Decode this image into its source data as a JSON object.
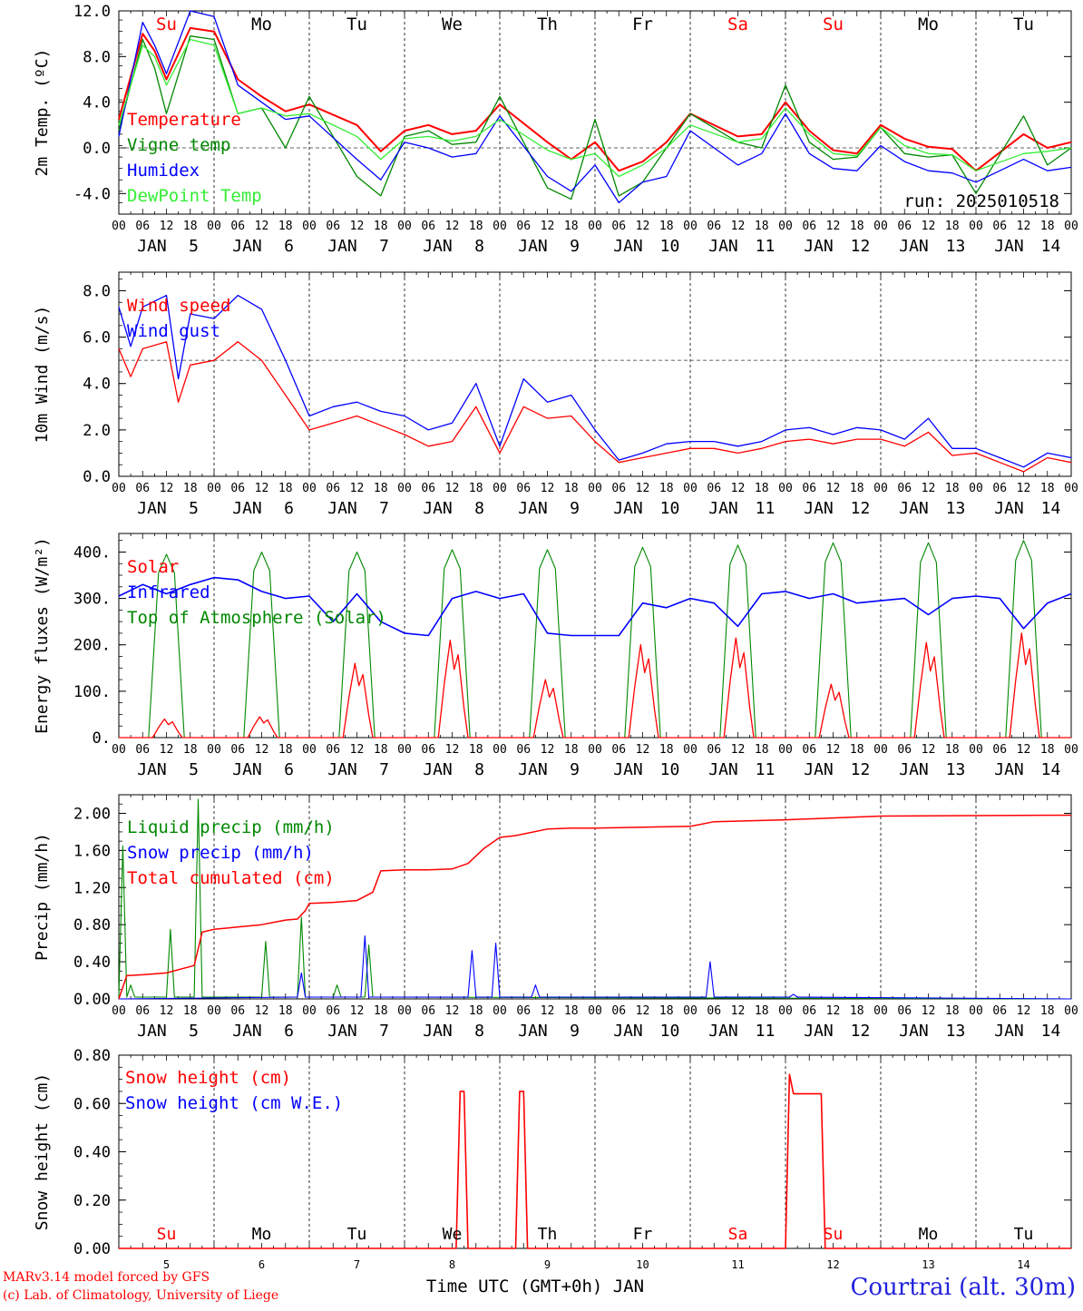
{
  "footer": {
    "model_line": "MARv3.14 model forced by GFS",
    "lab_line": "(c) Lab. of Climatology, University of Liege",
    "station": "Courtrai (alt. 30m)",
    "xaxis_title": "Time UTC (GMT+0h) JAN"
  },
  "colors": {
    "red": "#ff0000",
    "green": "#008800",
    "blue": "#0000ff",
    "lightgreen": "#33ee33"
  },
  "x_axis": {
    "day_start": 5,
    "n_days": 10,
    "hour_ticks": [
      "00",
      "06",
      "12",
      "18"
    ],
    "month": "JAN",
    "dates": [
      "5",
      "6",
      "7",
      "8",
      "9",
      "10",
      "11",
      "12",
      "13",
      "14"
    ],
    "weekdays": [
      "Su",
      "Mo",
      "Tu",
      "We",
      "Th",
      "Fr",
      "Sa",
      "Su",
      "Mo",
      "Tu"
    ],
    "weekday_colors": [
      "red",
      "black",
      "black",
      "black",
      "black",
      "black",
      "red",
      "red",
      "black",
      "black"
    ]
  },
  "chart_data": [
    {
      "type": "line",
      "ylabel": "2m Temp. (ºC)",
      "ylim": [
        -5.8,
        12.0
      ],
      "yticks": [
        "12.0",
        "8.0",
        "4.0",
        "0.0",
        "-4.0"
      ],
      "ytick_values": [
        12,
        8,
        4,
        0,
        -4
      ],
      "reference_line": 0,
      "annotation": "run: 2025010518",
      "x_hours": [
        0,
        6,
        9,
        12,
        18,
        24,
        30,
        36,
        42,
        48,
        60,
        66,
        72,
        78,
        84,
        90,
        96,
        108,
        114,
        120,
        126,
        132,
        138,
        144,
        156,
        162,
        168,
        174,
        180,
        186,
        192,
        198,
        204,
        210,
        216,
        228,
        234,
        240
      ],
      "series": [
        {
          "name": "Temperature",
          "color": "red",
          "values": [
            2.5,
            10.0,
            8.5,
            6.0,
            10.5,
            10.2,
            6.0,
            4.5,
            3.2,
            3.8,
            2.0,
            -0.3,
            1.5,
            2.0,
            1.2,
            1.5,
            3.8,
            0.5,
            -1.0,
            0.5,
            -2.0,
            -1.2,
            0.5,
            3.0,
            1.0,
            1.2,
            4.0,
            1.5,
            -0.2,
            -0.5,
            2.0,
            0.8,
            0.1,
            -0.1,
            -2.0,
            1.2,
            0.0,
            0.5
          ]
        },
        {
          "name": "Vigne temp",
          "color": "green",
          "values": [
            1.5,
            9.5,
            7.0,
            3.0,
            9.8,
            9.5,
            3.0,
            3.5,
            0.0,
            4.5,
            -2.5,
            -4.2,
            1.0,
            1.5,
            0.3,
            0.5,
            4.5,
            -3.5,
            -4.5,
            2.5,
            -4.2,
            -3.0,
            0.0,
            3.0,
            0.5,
            0.0,
            5.5,
            0.5,
            -1.0,
            -0.8,
            1.8,
            -0.5,
            -0.8,
            -0.6,
            -4.0,
            2.8,
            -1.5,
            0.0
          ]
        },
        {
          "name": "Humidex",
          "color": "blue",
          "values": [
            1.0,
            11.0,
            9.0,
            6.5,
            12.0,
            11.5,
            5.5,
            4.0,
            2.5,
            2.8,
            -1.0,
            -2.8,
            0.5,
            0.0,
            -0.8,
            -0.5,
            2.8,
            -2.5,
            -3.8,
            -1.5,
            -4.8,
            -3.0,
            -2.5,
            1.5,
            -1.5,
            -0.5,
            3.0,
            -0.5,
            -1.8,
            -2.0,
            0.2,
            -1.2,
            -2.0,
            -2.2,
            -3.0,
            -1.0,
            -2.0,
            -1.7
          ]
        },
        {
          "name": "DewPoint Temp",
          "color": "lightgreen",
          "values": [
            2.0,
            9.0,
            8.0,
            5.5,
            9.5,
            9.0,
            3.0,
            3.5,
            2.8,
            3.0,
            1.0,
            -1.0,
            0.8,
            1.0,
            0.6,
            1.0,
            2.5,
            -0.2,
            -1.0,
            -0.5,
            -2.5,
            -1.5,
            0.0,
            2.0,
            0.5,
            0.8,
            3.5,
            1.2,
            -0.5,
            -0.7,
            1.8,
            0.2,
            -0.5,
            -0.6,
            -2.0,
            -0.5,
            -0.3,
            0.0
          ]
        }
      ]
    },
    {
      "type": "line",
      "ylabel": "10m Wind (m/s)",
      "ylim": [
        0,
        8.8
      ],
      "yticks": [
        "8.0",
        "6.0",
        "4.0",
        "2.0",
        "0.0"
      ],
      "ytick_values": [
        8,
        6,
        4,
        2,
        0
      ],
      "reference_line": 5,
      "x_hours": [
        0,
        3,
        6,
        12,
        15,
        18,
        24,
        30,
        36,
        42,
        48,
        54,
        60,
        66,
        72,
        78,
        84,
        90,
        96,
        102,
        108,
        114,
        120,
        126,
        132,
        138,
        144,
        150,
        156,
        162,
        168,
        174,
        180,
        186,
        192,
        198,
        204,
        210,
        216,
        222,
        228,
        234,
        240
      ],
      "series": [
        {
          "name": "Wind speed",
          "color": "red",
          "values": [
            5.5,
            4.3,
            5.5,
            5.8,
            3.2,
            4.8,
            5.0,
            5.8,
            5.0,
            3.5,
            2.0,
            2.3,
            2.6,
            2.2,
            1.8,
            1.3,
            1.5,
            3.0,
            1.0,
            3.0,
            2.5,
            2.6,
            1.5,
            0.6,
            0.8,
            1.0,
            1.2,
            1.2,
            1.0,
            1.2,
            1.5,
            1.6,
            1.4,
            1.6,
            1.6,
            1.3,
            1.9,
            0.9,
            1.0,
            0.6,
            0.2,
            0.8,
            0.6
          ]
        },
        {
          "name": "Wind gust",
          "color": "blue",
          "values": [
            7.3,
            5.6,
            7.3,
            7.8,
            4.2,
            7.0,
            6.8,
            7.8,
            7.2,
            5.0,
            2.6,
            3.0,
            3.2,
            2.8,
            2.6,
            2.0,
            2.3,
            4.0,
            1.3,
            4.2,
            3.2,
            3.5,
            2.0,
            0.7,
            1.0,
            1.4,
            1.5,
            1.5,
            1.3,
            1.5,
            2.0,
            2.1,
            1.8,
            2.1,
            2.0,
            1.6,
            2.5,
            1.2,
            1.2,
            0.8,
            0.4,
            1.0,
            0.8
          ]
        }
      ]
    },
    {
      "type": "line",
      "ylabel": "Energy fluxes (W/m²)",
      "ylim": [
        0,
        440
      ],
      "yticks": [
        "400.",
        "300.",
        "200.",
        "100.",
        "0."
      ],
      "ytick_values": [
        400,
        300,
        200,
        100,
        0
      ],
      "series": [
        {
          "name": "Solar",
          "color": "red",
          "peaks": [
            40,
            45,
            160,
            210,
            125,
            200,
            215,
            115,
            205,
            225
          ]
        },
        {
          "name": "Infrared",
          "color": "blue",
          "x_hours": [
            0,
            6,
            12,
            18,
            24,
            30,
            36,
            42,
            48,
            54,
            60,
            66,
            72,
            78,
            84,
            90,
            96,
            102,
            108,
            114,
            120,
            126,
            132,
            138,
            144,
            150,
            156,
            162,
            168,
            174,
            180,
            186,
            192,
            198,
            204,
            210,
            216,
            222,
            228,
            234,
            240
          ],
          "values": [
            305,
            330,
            310,
            330,
            345,
            340,
            315,
            300,
            305,
            250,
            310,
            250,
            225,
            220,
            300,
            315,
            300,
            310,
            225,
            220,
            220,
            220,
            290,
            280,
            300,
            290,
            240,
            310,
            315,
            300,
            310,
            290,
            295,
            300,
            265,
            300,
            305,
            300,
            235,
            290,
            310
          ]
        },
        {
          "name": "Top of Atmosphere (Solar)",
          "color": "green",
          "peaks": [
            395,
            400,
            400,
            405,
            405,
            410,
            415,
            420,
            420,
            425
          ]
        }
      ]
    },
    {
      "type": "line",
      "ylabel": "Precip (mm/h)",
      "ylim": [
        0,
        2.2
      ],
      "yticks": [
        "2.00",
        "1.60",
        "1.20",
        "0.80",
        "0.40",
        "0.00"
      ],
      "ytick_values": [
        2.0,
        1.6,
        1.2,
        0.8,
        0.4,
        0.0
      ],
      "series": [
        {
          "name": "Liquid precip (mm/h)",
          "color": "green",
          "spikes": [
            [
              1,
              1.65
            ],
            [
              3,
              0.15
            ],
            [
              13,
              0.75
            ],
            [
              20,
              2.15
            ],
            [
              37,
              0.62
            ],
            [
              46,
              0.88
            ],
            [
              55,
              0.15
            ],
            [
              63,
              0.58
            ]
          ]
        },
        {
          "name": "Snow precip (mm/h)",
          "color": "blue",
          "spikes": [
            [
              46,
              0.28
            ],
            [
              62,
              0.68
            ],
            [
              89,
              0.52
            ],
            [
              95,
              0.6
            ],
            [
              105,
              0.15
            ],
            [
              149,
              0.4
            ],
            [
              170,
              0.05
            ]
          ]
        },
        {
          "name": "Total cumulated (cm)",
          "color": "red",
          "x_hours": [
            0,
            2,
            6,
            12,
            19,
            21,
            24,
            36,
            42,
            45,
            47,
            48,
            54,
            60,
            64,
            66,
            72,
            78,
            84,
            88,
            92,
            96,
            100,
            108,
            114,
            120,
            144,
            150,
            168,
            192,
            240
          ],
          "values": [
            0.0,
            0.25,
            0.26,
            0.28,
            0.36,
            0.72,
            0.75,
            0.8,
            0.85,
            0.86,
            0.95,
            1.03,
            1.04,
            1.06,
            1.15,
            1.38,
            1.39,
            1.39,
            1.4,
            1.46,
            1.62,
            1.74,
            1.76,
            1.83,
            1.84,
            1.84,
            1.86,
            1.91,
            1.93,
            1.97,
            1.98
          ]
        }
      ]
    },
    {
      "type": "line",
      "ylabel": "Snow height (cm)",
      "ylim": [
        0,
        0.8
      ],
      "yticks": [
        "0.80",
        "0.60",
        "0.40",
        "0.20",
        "0.00"
      ],
      "ytick_values": [
        0.8,
        0.6,
        0.4,
        0.2,
        0.0
      ],
      "series": [
        {
          "name": "Snow height (cm)",
          "color": "red",
          "x_hours": [
            0,
            85,
            86,
            87,
            88,
            100,
            101,
            102,
            103,
            168,
            169,
            170,
            172,
            176,
            177,
            178,
            240
          ],
          "values": [
            0,
            0,
            0.65,
            0.65,
            0,
            0,
            0.65,
            0.65,
            0,
            0,
            0.72,
            0.64,
            0.64,
            0.64,
            0.64,
            0,
            0
          ]
        },
        {
          "name": "Snow height (cm W.E.)",
          "color": "blue",
          "values": []
        }
      ]
    }
  ]
}
